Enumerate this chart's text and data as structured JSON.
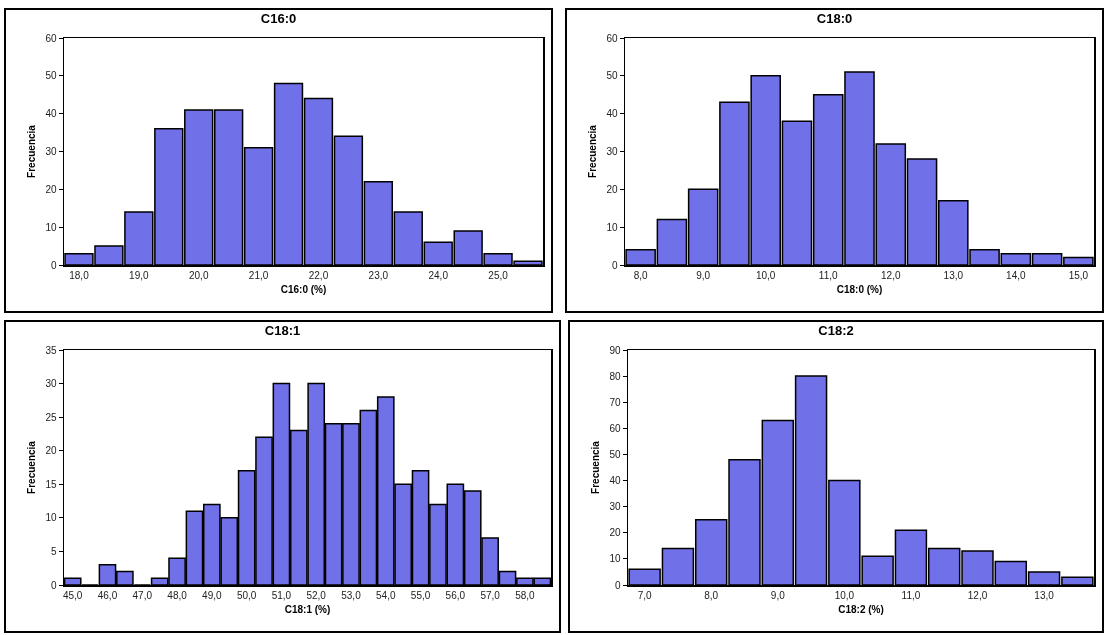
{
  "chart_data": [
    {
      "type": "bar",
      "title": "C16:0",
      "xlabel": "C16:0 (%)",
      "ylabel": "Frecuencia",
      "color": "#7070e8",
      "ylim": [
        0,
        60
      ],
      "yticks": [
        0,
        10,
        20,
        30,
        40,
        50,
        60
      ],
      "categories": [
        "18,0",
        null,
        "19,0",
        null,
        "20,0",
        null,
        "21,0",
        null,
        "22,0",
        null,
        "23,0",
        null,
        "24,0",
        null,
        "25,0",
        null
      ],
      "values": [
        3,
        5,
        14,
        36,
        41,
        41,
        31,
        48,
        44,
        34,
        22,
        14,
        6,
        9,
        3,
        1
      ]
    },
    {
      "type": "bar",
      "title": "C18:0",
      "xlabel": "C18:0 (%)",
      "ylabel": "Frecuencia",
      "color": "#7070e8",
      "ylim": [
        0,
        60
      ],
      "yticks": [
        0,
        10,
        20,
        30,
        40,
        50,
        60
      ],
      "categories": [
        "8,0",
        null,
        "9,0",
        null,
        "10,0",
        null,
        "11,0",
        null,
        "12,0",
        null,
        "13,0",
        null,
        "14,0",
        null,
        "15,0"
      ],
      "values": [
        4,
        12,
        20,
        43,
        50,
        38,
        45,
        51,
        32,
        28,
        17,
        4,
        3,
        3,
        2
      ]
    },
    {
      "type": "bar",
      "title": "C18:1",
      "xlabel": "C18:1 (%)",
      "ylabel": "Frecuencia",
      "color": "#7070e8",
      "ylim": [
        0,
        35
      ],
      "yticks": [
        0,
        5,
        10,
        15,
        20,
        25,
        30,
        35
      ],
      "categories": [
        "45,0",
        null,
        "46,0",
        null,
        "47,0",
        null,
        "48,0",
        null,
        "49,0",
        null,
        "50,0",
        null,
        "51,0",
        null,
        "52,0",
        null,
        "53,0",
        null,
        "54,0",
        null,
        "55,0",
        null,
        "56,0",
        null,
        "57,0",
        null,
        "58,0",
        null
      ],
      "values": [
        1,
        0,
        3,
        2,
        0,
        1,
        4,
        11,
        12,
        10,
        17,
        22,
        30,
        23,
        30,
        24,
        24,
        26,
        28,
        15,
        17,
        12,
        15,
        14,
        7,
        2,
        1,
        1
      ]
    },
    {
      "type": "bar",
      "title": "C18:2",
      "xlabel": "C18:2 (%)",
      "ylabel": "Frecuencia",
      "color": "#7070e8",
      "ylim": [
        0,
        90
      ],
      "yticks": [
        0,
        10,
        20,
        30,
        40,
        50,
        60,
        70,
        80,
        90
      ],
      "categories": [
        "7,0",
        null,
        "8,0",
        null,
        "9,0",
        null,
        "10,0",
        null,
        "11,0",
        null,
        "12,0",
        null,
        "13,0",
        null
      ],
      "values": [
        6,
        14,
        25,
        48,
        63,
        80,
        40,
        11,
        21,
        14,
        13,
        9,
        5,
        3
      ]
    }
  ]
}
